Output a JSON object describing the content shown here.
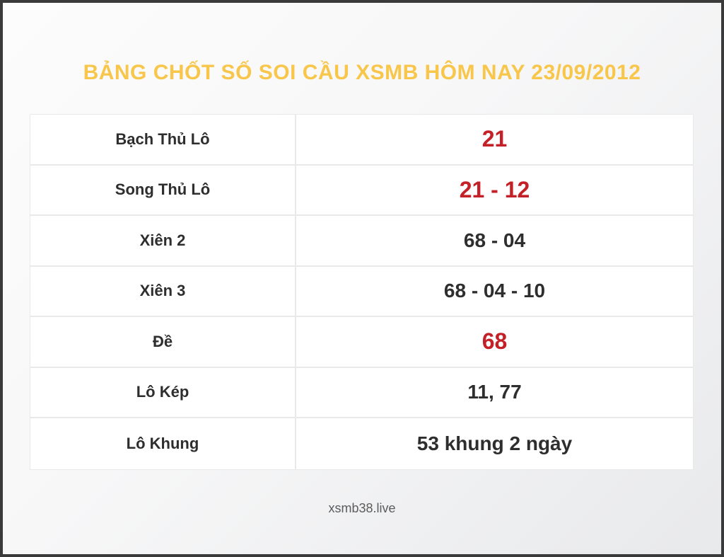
{
  "page": {
    "title": "BẢNG CHỐT SỐ SOI CẦU XSMB HÔM NAY 23/09/2012",
    "footer": "xsmb38.live"
  },
  "colors": {
    "title": "#f7c64a",
    "highlight": "#c32127",
    "text": "#2e2e2e",
    "border": "#e9e9e9",
    "footer_text": "#5c5c5c",
    "frame": "#3a3a3a"
  },
  "table": {
    "rows": [
      {
        "label": "Bạch Thủ Lô",
        "value": "21",
        "highlight": true
      },
      {
        "label": "Song Thủ Lô",
        "value": "21 - 12",
        "highlight": true
      },
      {
        "label": "Xiên 2",
        "value": "68 - 04",
        "highlight": false
      },
      {
        "label": "Xiên 3",
        "value": "68 - 04 - 10",
        "highlight": false
      },
      {
        "label": "Đề",
        "value": "68",
        "highlight": true
      },
      {
        "label": "Lô Kép",
        "value": "11, 77",
        "highlight": false
      },
      {
        "label": "Lô Khung",
        "value": "53 khung 2 ngày",
        "highlight": false
      }
    ]
  }
}
